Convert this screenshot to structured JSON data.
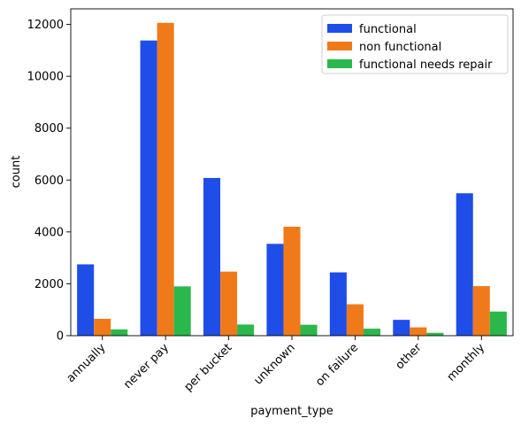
{
  "chart_data": {
    "type": "bar",
    "xlabel": "payment_type",
    "ylabel": "count",
    "categories": [
      "annually",
      "never pay",
      "per bucket",
      "unknown",
      "on failure",
      "other",
      "monthly"
    ],
    "series": [
      {
        "name": "functional",
        "color": "#1f4de8",
        "values": [
          2750,
          11380,
          6080,
          3540,
          2440,
          610,
          5490
        ]
      },
      {
        "name": "non functional",
        "color": "#f07a1a",
        "values": [
          650,
          12060,
          2470,
          4200,
          1210,
          320,
          1910
        ]
      },
      {
        "name": "functional needs repair",
        "color": "#2ab84a",
        "values": [
          240,
          1900,
          430,
          420,
          270,
          110,
          930
        ]
      }
    ],
    "ylim": [
      0,
      12600
    ],
    "yticks": [
      "0",
      "2000",
      "4000",
      "6000",
      "8000",
      "10000",
      "12000"
    ],
    "ytick_values": [
      0,
      2000,
      4000,
      6000,
      8000,
      10000,
      12000
    ],
    "legend": "top-right",
    "grid": false
  }
}
